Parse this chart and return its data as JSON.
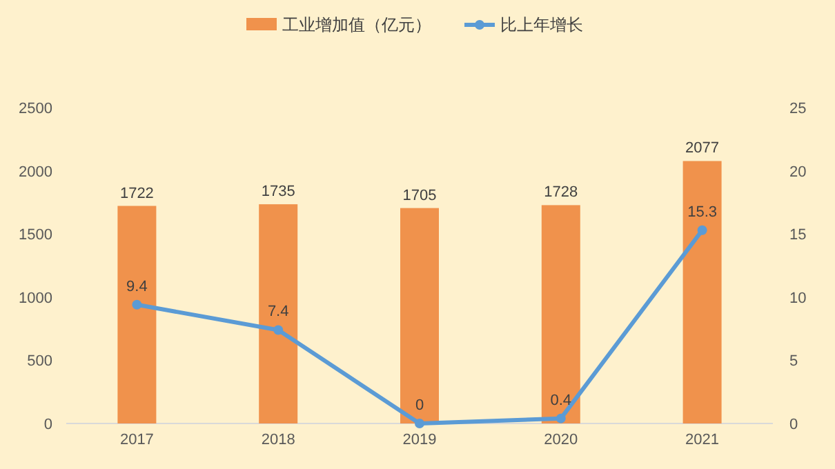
{
  "chart_data": {
    "type": "bar",
    "categories": [
      "2017",
      "2018",
      "2019",
      "2020",
      "2021"
    ],
    "series": [
      {
        "name": "工业增加值（亿元）",
        "color": "#f0924c",
        "values": [
          1722,
          1735,
          1705,
          1728,
          2077
        ]
      },
      {
        "name": "比上年增长",
        "type": "line",
        "axis": "y2",
        "color": "#5b9bd5",
        "values": [
          9.4,
          7.4,
          0,
          0.4,
          15.3
        ]
      }
    ],
    "ylim": [
      0,
      2500
    ],
    "yticks": [
      0,
      500,
      1000,
      1500,
      2000,
      2500
    ],
    "y2lim": [
      0,
      25
    ],
    "y2ticks": [
      0,
      5,
      10,
      15,
      20,
      25
    ],
    "marker": "circle",
    "line_style": "solid",
    "data_labels": true,
    "legend": "top",
    "grid": false
  }
}
